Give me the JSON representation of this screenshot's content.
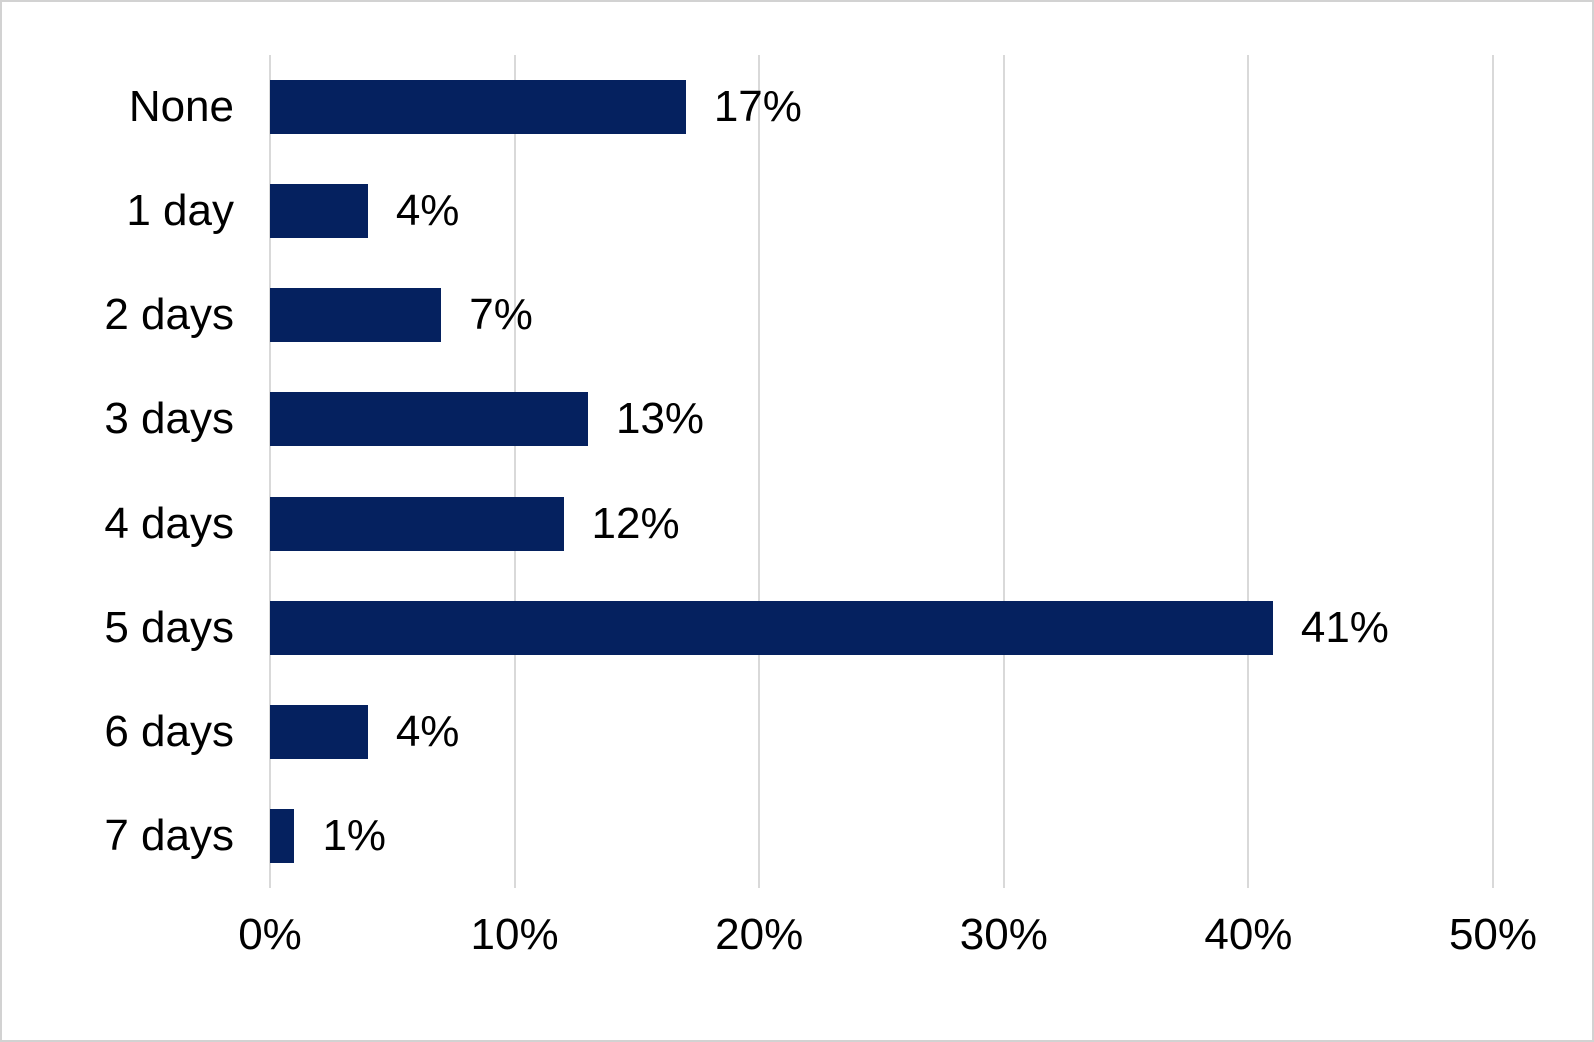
{
  "chart_data": {
    "type": "bar",
    "orientation": "horizontal",
    "title": "",
    "xlabel": "",
    "ylabel": "",
    "categories": [
      "None",
      "1 day",
      "2 days",
      "3 days",
      "4 days",
      "5 days",
      "6 days",
      "7 days"
    ],
    "values": [
      17,
      4,
      7,
      13,
      12,
      41,
      4,
      1
    ],
    "value_labels": [
      "17%",
      "4%",
      "7%",
      "13%",
      "12%",
      "41%",
      "4%",
      "1%"
    ],
    "xlim": [
      0,
      50
    ],
    "x_ticks": [
      {
        "value": 0,
        "label": "0%"
      },
      {
        "value": 10,
        "label": "10%"
      },
      {
        "value": 20,
        "label": "20%"
      },
      {
        "value": 30,
        "label": "30%"
      },
      {
        "value": 40,
        "label": "40%"
      },
      {
        "value": 50,
        "label": "50%"
      }
    ],
    "grid": "vertical-only",
    "legend_position": "none",
    "colors": {
      "bar": "#05215f",
      "gridline": "#d9d9d9",
      "label_text": "#000000",
      "background": "#ffffff",
      "frame_border": "#d2d2d2"
    }
  }
}
